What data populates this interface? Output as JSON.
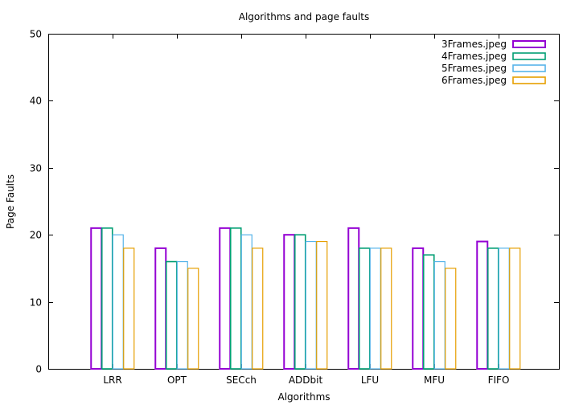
{
  "chart_data": {
    "type": "bar",
    "title": "Algorithms and page faults",
    "xlabel": "Algorithms",
    "ylabel": "Page Faults",
    "ylim": [
      0,
      50
    ],
    "yticks": [
      "0",
      "10",
      "20",
      "30",
      "40",
      "50"
    ],
    "grid": false,
    "legend_position": "top-right",
    "categories": [
      "LRR",
      "OPT",
      "SECch",
      "ADDbit",
      "LFU",
      "MFU",
      "FIFO"
    ],
    "series": [
      {
        "name": "3Frames.jpeg",
        "color": "#9400d3",
        "values": [
          21,
          18,
          21,
          20,
          21,
          18,
          19
        ]
      },
      {
        "name": "4Frames.jpeg",
        "color": "#009e73",
        "values": [
          21,
          16,
          21,
          20,
          18,
          17,
          18
        ]
      },
      {
        "name": "5Frames.jpeg",
        "color": "#56b4e9",
        "values": [
          20,
          16,
          20,
          19,
          18,
          16,
          18
        ]
      },
      {
        "name": "6Frames.jpeg",
        "color": "#e69f00",
        "values": [
          18,
          15,
          18,
          19,
          18,
          15,
          18
        ]
      }
    ]
  }
}
